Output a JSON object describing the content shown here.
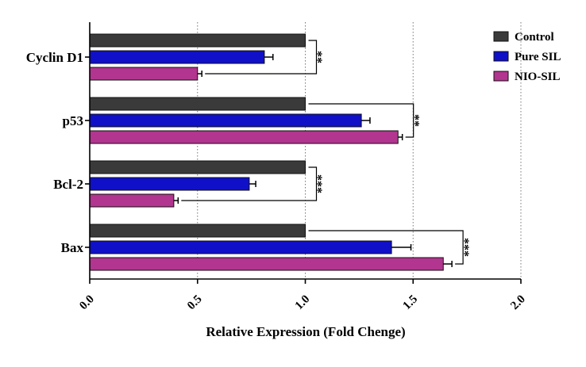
{
  "chart_data": {
    "type": "bar",
    "orientation": "horizontal",
    "categories": [
      "Cyclin D1",
      "p53",
      "Bcl-2",
      "Bax"
    ],
    "series": [
      {
        "name": "Control",
        "color": "#3a3a3a",
        "values": [
          1.0,
          1.0,
          1.0,
          1.0
        ],
        "errors": [
          0,
          0,
          0,
          0
        ]
      },
      {
        "name": "Pure SIL",
        "color": "#1010c8",
        "values": [
          0.81,
          1.26,
          0.74,
          1.4
        ],
        "errors": [
          0.04,
          0.04,
          0.03,
          0.09
        ]
      },
      {
        "name": "NIO-SIL",
        "color": "#b2358f",
        "values": [
          0.5,
          1.43,
          0.39,
          1.64
        ],
        "errors": [
          0.02,
          0.02,
          0.02,
          0.04
        ]
      }
    ],
    "xlabel": "Relative Expression (Fold Chenge)",
    "xlim": [
      0,
      2.0
    ],
    "xticks": [
      "0.0",
      "0.5",
      "1.0",
      "1.5",
      "2.0"
    ],
    "grid": "vertical-dotted",
    "legend_position": "top-right",
    "significance": [
      {
        "category": "Cyclin D1",
        "label": "**"
      },
      {
        "category": "p53",
        "label": "**"
      },
      {
        "category": "Bcl-2",
        "label": "***"
      },
      {
        "category": "Bax",
        "label": "***"
      }
    ]
  }
}
